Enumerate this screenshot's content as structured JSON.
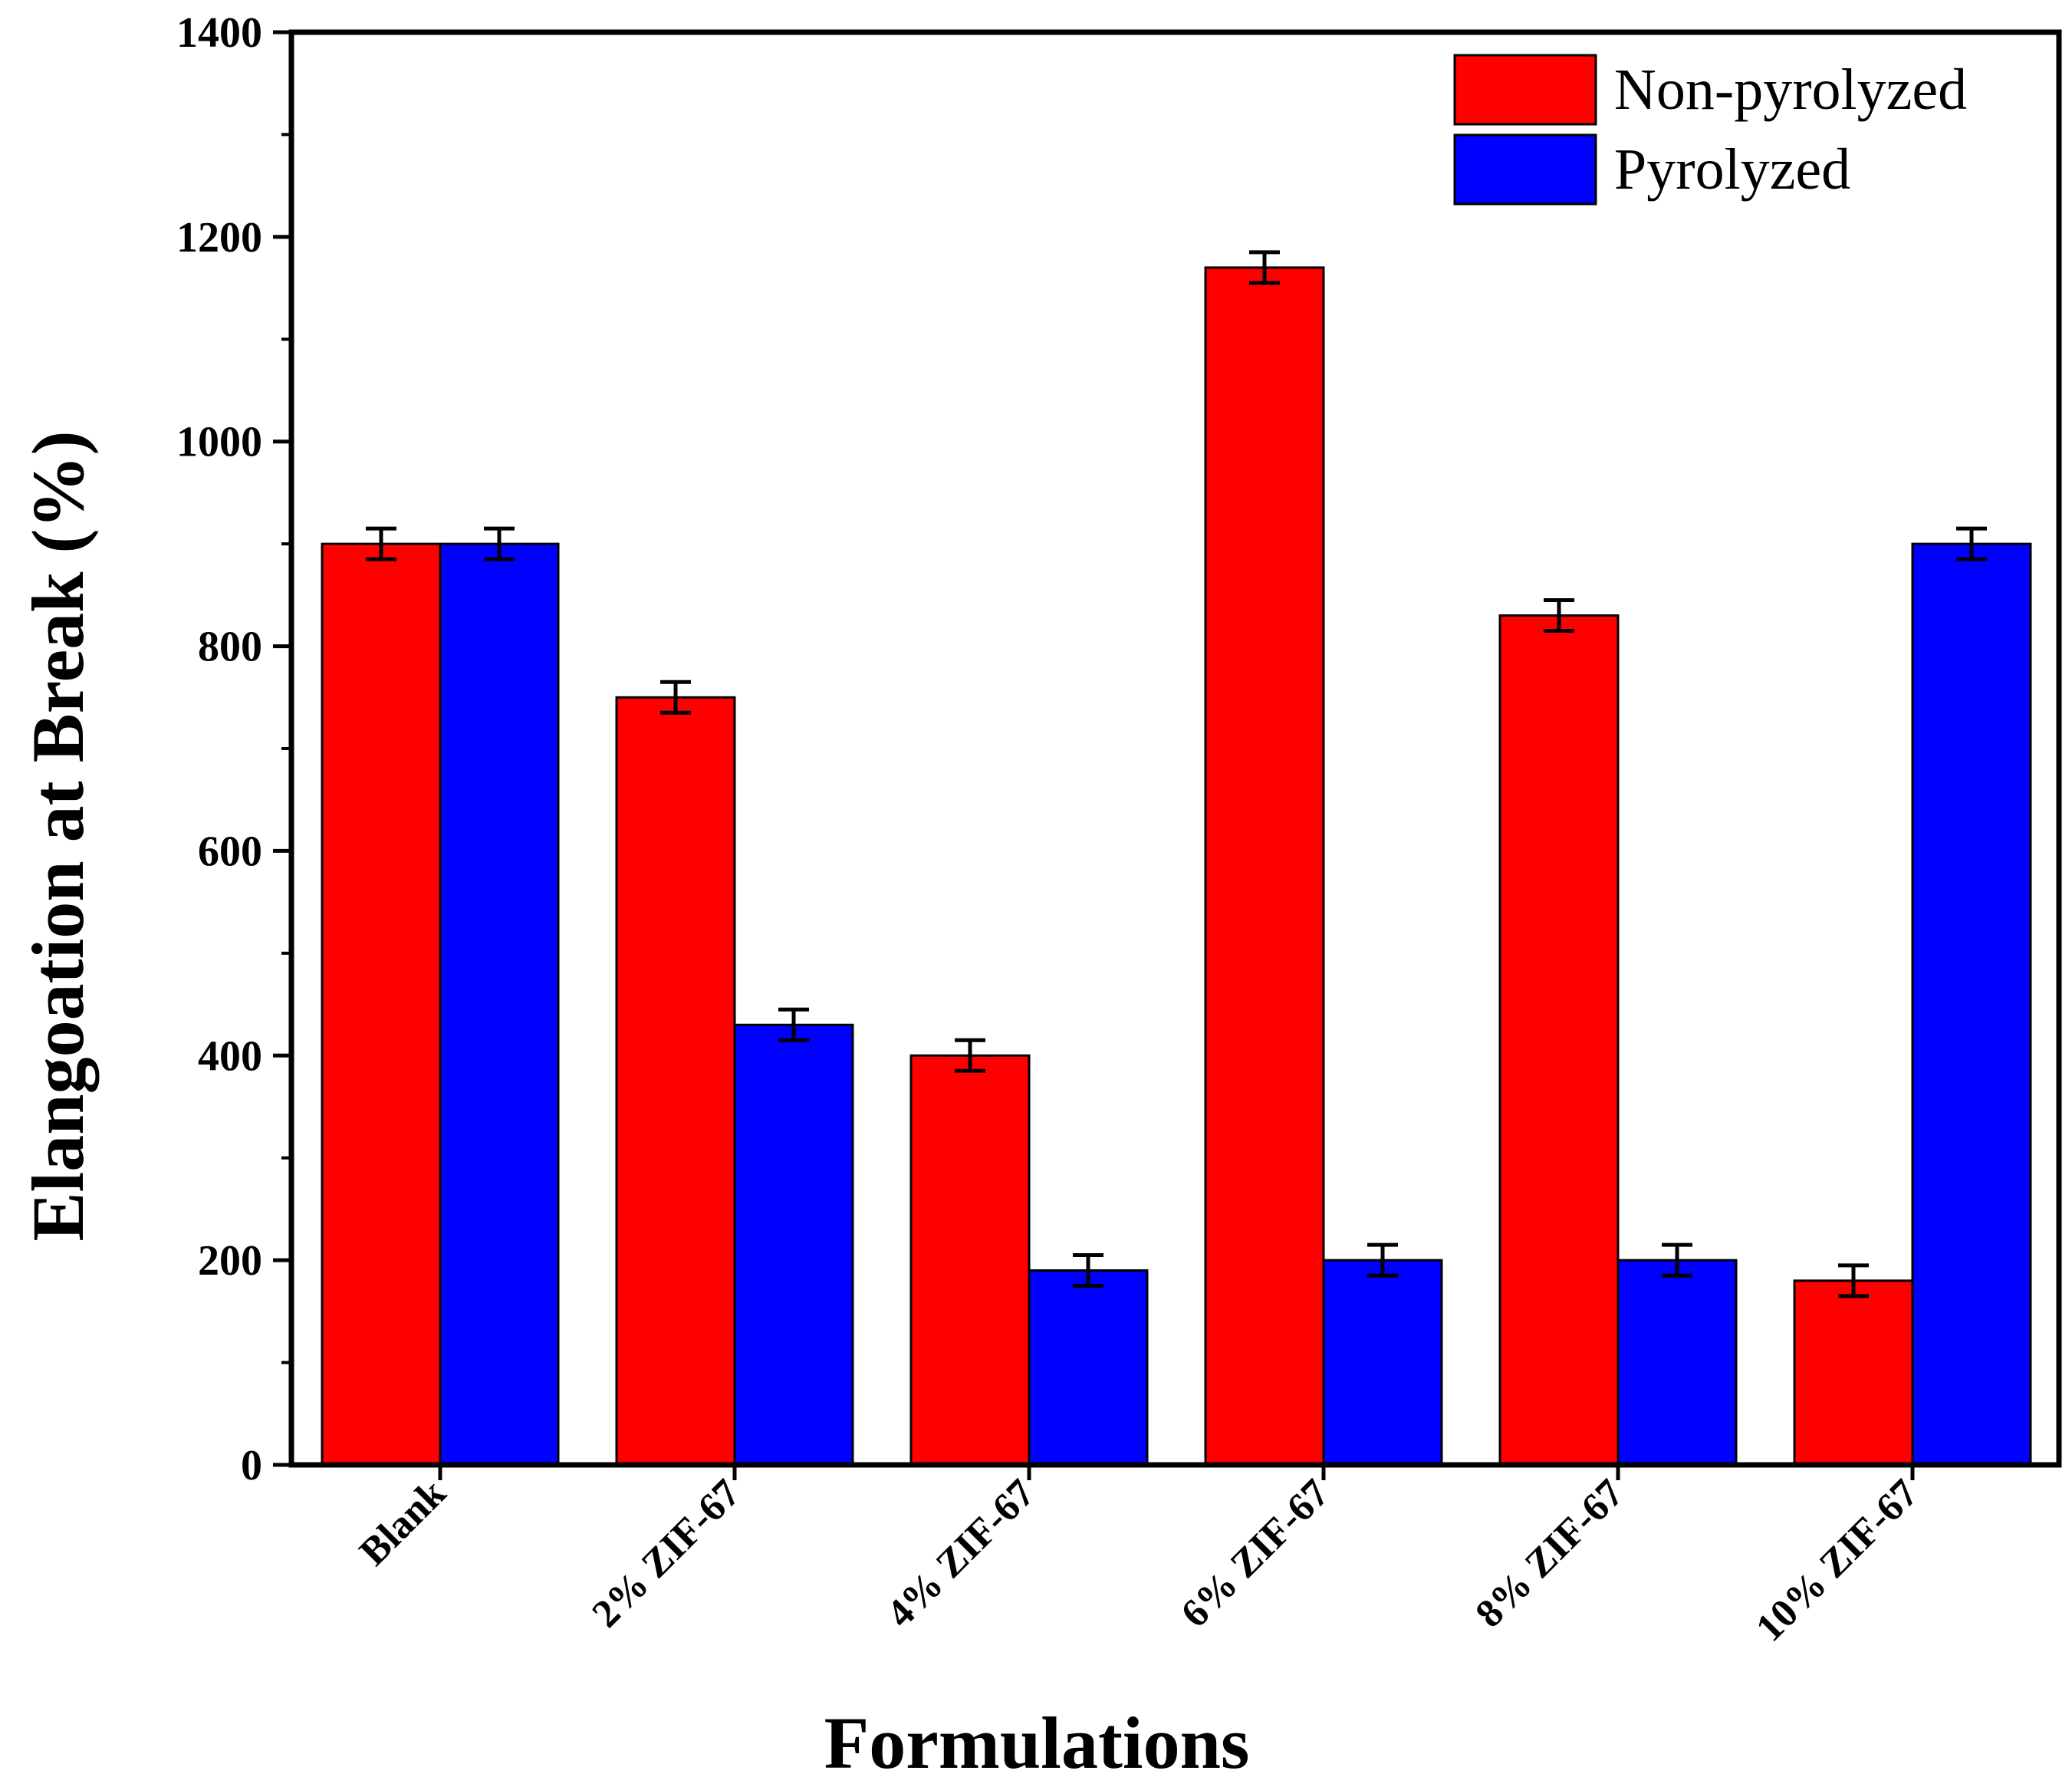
{
  "chart_data": {
    "type": "bar",
    "title": "",
    "xlabel": "Formulations",
    "ylabel": "Elangoation at Break (%)",
    "ylim": [
      0,
      1400
    ],
    "yticks": [
      0,
      200,
      400,
      600,
      800,
      1000,
      1200,
      1400
    ],
    "categories": [
      "Blank",
      "2% ZIF-67",
      "4% ZIF-67",
      "6% ZIF-67",
      "8% ZIF-67",
      "10% ZIF-67"
    ],
    "series": [
      {
        "name": "Non-pyrolyzed",
        "color": "#ff0000",
        "values": [
          900,
          750,
          400,
          1170,
          830,
          180
        ],
        "errors": [
          15,
          15,
          15,
          15,
          15,
          15
        ]
      },
      {
        "name": "Pyrolyzed",
        "color": "#0000ff",
        "values": [
          900,
          430,
          190,
          200,
          200,
          900
        ],
        "errors": [
          15,
          15,
          15,
          15,
          15,
          15
        ]
      }
    ],
    "legend_position": "top-right",
    "grid": false
  }
}
